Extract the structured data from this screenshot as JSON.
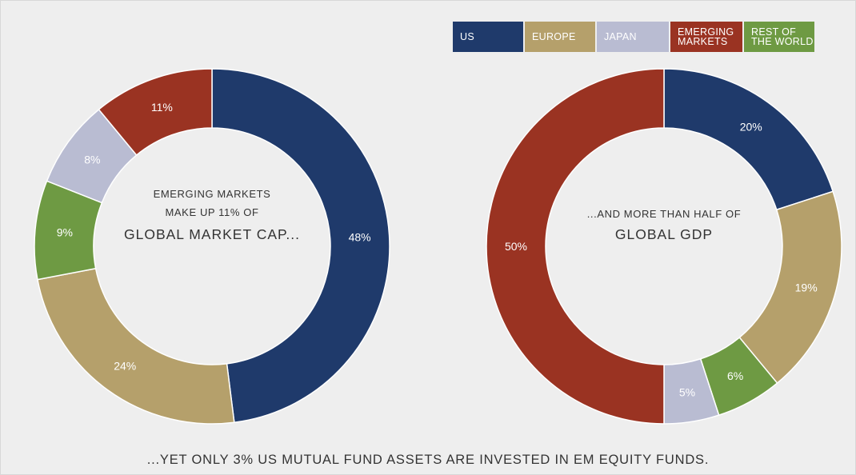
{
  "legend": {
    "items": [
      {
        "label": "US",
        "color": "#1f3a6b"
      },
      {
        "label": "EUROPE",
        "color": "#b5a06b"
      },
      {
        "label": "JAPAN",
        "color": "#b9bcd2"
      },
      {
        "label": "EMERGING\nMARKETS",
        "color": "#9a3322"
      },
      {
        "label": "REST OF\nTHE WORLD",
        "color": "#6e9a43"
      }
    ]
  },
  "left_center": {
    "line1": "EMERGING MARKETS",
    "line2": "MAKE UP 11% OF",
    "line3": "GLOBAL MARKET CAP..."
  },
  "right_center": {
    "line1": "...AND MORE THAN HALF OF",
    "line2": "GLOBAL GDP"
  },
  "footer": "...YET ONLY 3% US MUTUAL FUND ASSETS ARE INVESTED IN EM EQUITY FUNDS.",
  "chart_data": [
    {
      "type": "pie",
      "title": "",
      "slices": [
        {
          "name": "US",
          "value": 48,
          "label": "48%",
          "color": "#1f3a6b"
        },
        {
          "name": "EUROPE",
          "value": 24,
          "label": "24%",
          "color": "#b5a06b"
        },
        {
          "name": "REST OF THE WORLD",
          "value": 9,
          "label": "9%",
          "color": "#6e9a43"
        },
        {
          "name": "JAPAN",
          "value": 8,
          "label": "8%",
          "color": "#b9bcd2"
        },
        {
          "name": "EMERGING MARKETS",
          "value": 11,
          "label": "11%",
          "color": "#9a3322"
        }
      ]
    },
    {
      "type": "pie",
      "title": "",
      "slices": [
        {
          "name": "US",
          "value": 20,
          "label": "20%",
          "color": "#1f3a6b"
        },
        {
          "name": "EUROPE",
          "value": 19,
          "label": "19%",
          "color": "#b5a06b"
        },
        {
          "name": "REST OF THE WORLD",
          "value": 6,
          "label": "6%",
          "color": "#6e9a43"
        },
        {
          "name": "JAPAN",
          "value": 5,
          "label": "5%",
          "color": "#b9bcd2"
        },
        {
          "name": "EMERGING MARKETS",
          "value": 50,
          "label": "50%",
          "color": "#9a3322"
        }
      ]
    }
  ]
}
